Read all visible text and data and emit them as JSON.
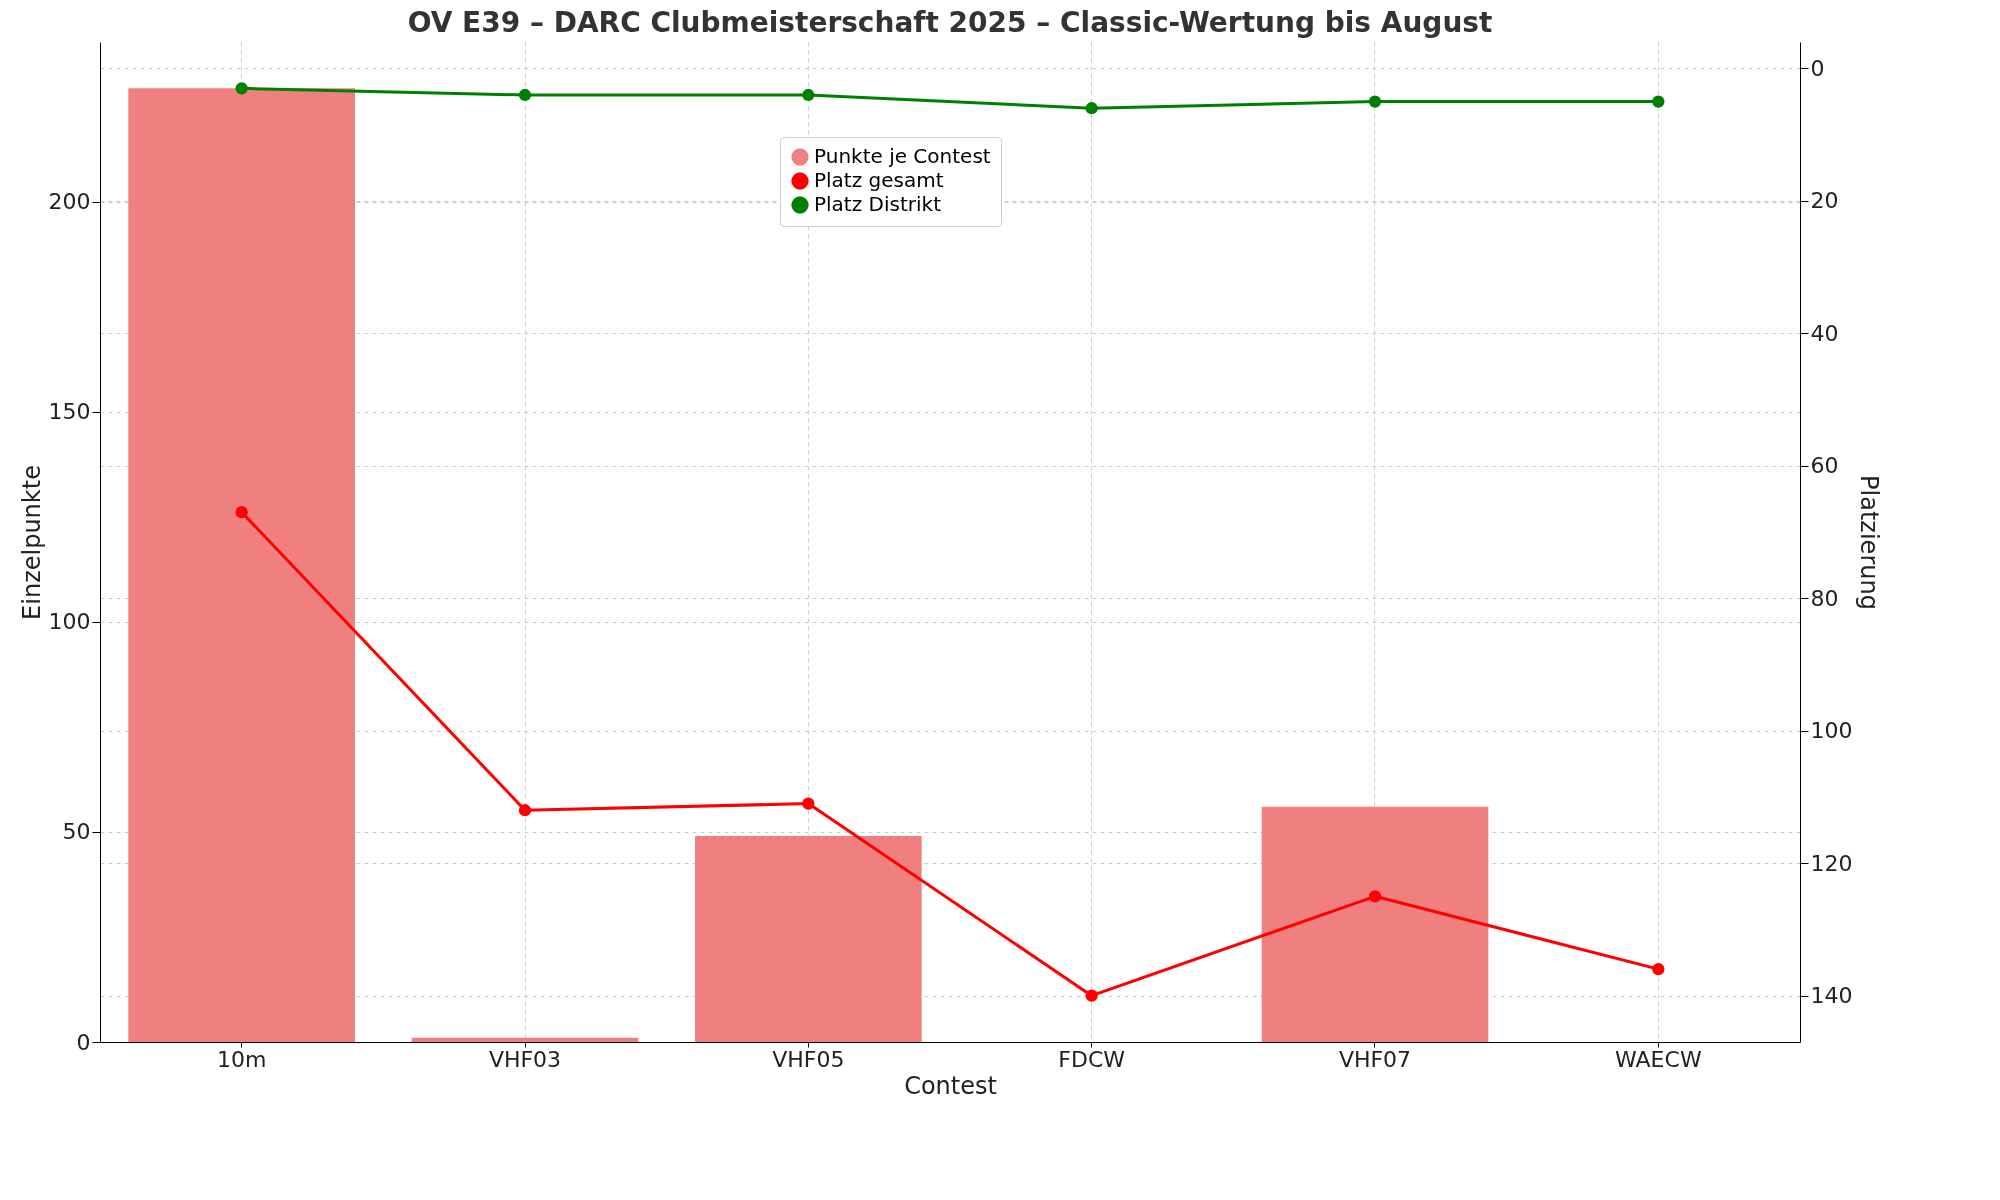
{
  "chart_data": {
    "type": "bar",
    "title": "OV E39 – DARC Clubmeisterschaft 2025 – Classic-Wertung bis August",
    "xlabel": "Contest",
    "ylabel": "Einzelpunkte",
    "y2label": "Platzierung",
    "categories": [
      "10m",
      "VHF03",
      "VHF05",
      "FDCW",
      "VHF07",
      "WAECW"
    ],
    "series": [
      {
        "name": "Punkte je Contest",
        "color": "#f08080",
        "values": [
          227,
          1,
          49,
          0,
          56,
          0
        ]
      },
      {
        "name": "Platz gesamt",
        "type": "line",
        "axis": "y2",
        "color": "#ff0000",
        "values": [
          67,
          112,
          111,
          140,
          125,
          136
        ]
      },
      {
        "name": "Platz Distrikt",
        "type": "line",
        "axis": "y2",
        "color": "#008000",
        "values": [
          3,
          4,
          4,
          6,
          5,
          5
        ]
      }
    ],
    "ylim": [
      0,
      238
    ],
    "yticks": [
      0,
      50,
      100,
      150,
      200
    ],
    "y2lim": [
      147,
      -4
    ],
    "y2ticks": [
      0,
      20,
      40,
      60,
      80,
      100,
      120,
      140
    ],
    "grid": true,
    "legend": "top",
    "marker": "circle"
  }
}
